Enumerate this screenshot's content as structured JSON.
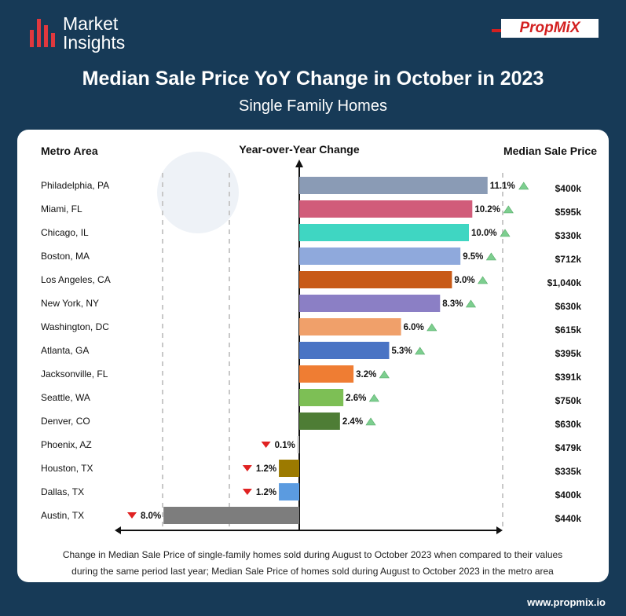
{
  "header": {
    "logo_text": "Market Insights",
    "brand": "PropMiX",
    "title": "Median Sale Price YoY Change in October in 2023",
    "subtitle": "Single Family Homes"
  },
  "columns": {
    "metro": "Metro Area",
    "yoy": "Year-over-Year Change",
    "price": "Median Sale Price"
  },
  "note": "Change in Median Sale Price of single-family homes sold during August to October 2023 when compared to their values during the same period last year; Median Sale Price of homes sold during August to October 2023 in the metro area",
  "footer": "www.propmix.io",
  "colors": {
    "up": "#7dce8f",
    "down": "#e02222",
    "background": "#173a57"
  },
  "chart_data": {
    "type": "bar",
    "orientation": "horizontal",
    "categories": [
      "Philadelphia, PA",
      "Miami, FL",
      "Chicago, IL",
      "Boston, MA",
      "Los Angeles, CA",
      "New York, NY",
      "Washington, DC",
      "Atlanta, GA",
      "Jacksonville, FL",
      "Seattle, WA",
      "Denver, CO",
      "Phoenix, AZ",
      "Houston, TX",
      "Dallas, TX",
      "Austin, TX"
    ],
    "values": [
      11.1,
      10.2,
      10.0,
      9.5,
      9.0,
      8.3,
      6.0,
      5.3,
      3.2,
      2.6,
      2.4,
      -0.1,
      -1.2,
      -1.2,
      -8.0
    ],
    "value_labels": [
      "11.1%",
      "10.2%",
      "10.0%",
      "9.5%",
      "9.0%",
      "8.3%",
      "6.0%",
      "5.3%",
      "3.2%",
      "2.6%",
      "2.4%",
      "0.1%",
      "1.2%",
      "1.2%",
      "8.0%"
    ],
    "colors": [
      "#8a9bb5",
      "#d15c7a",
      "#3fd6c2",
      "#8fa9dc",
      "#c85a17",
      "#8b7fc5",
      "#f0a06a",
      "#4a74c4",
      "#ef7d33",
      "#7dbf55",
      "#4e7d35",
      "#b9b9b9",
      "#9c7a00",
      "#5b9be0",
      "#7d7d7d"
    ],
    "median_sale_price": [
      "$400k",
      "$595k",
      "$330k",
      "$712k",
      "$1,040k",
      "$630k",
      "$615k",
      "$395k",
      "$391k",
      "$750k",
      "$630k",
      "$479k",
      "$335k",
      "$400k",
      "$440k"
    ],
    "xlim": [
      -8.0,
      11.1
    ],
    "ylabel": "Metro Area",
    "xlabel": "Year-over-Year Change"
  }
}
